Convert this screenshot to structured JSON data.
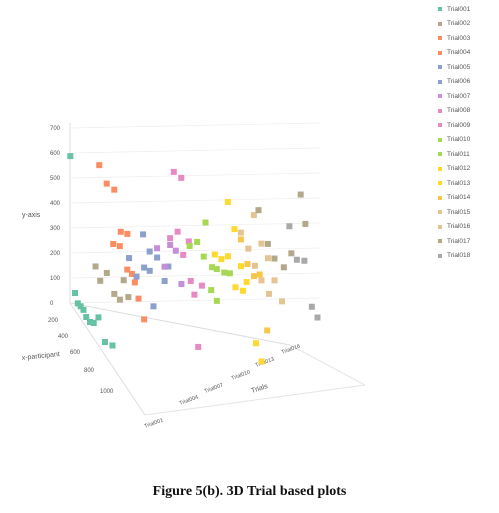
{
  "caption": "Figure 5(b). 3D Trial based plots",
  "chart_data": {
    "type": "scatter3d",
    "title": "",
    "axes": {
      "x": {
        "label": "x-participant",
        "ticks": [
          "200",
          "400",
          "600",
          "800",
          "1000"
        ]
      },
      "y": {
        "label": "y-axis",
        "ticks": [
          "0",
          "100",
          "200",
          "300",
          "400",
          "500",
          "600",
          "700"
        ]
      },
      "z": {
        "label": "Trials",
        "ticks": [
          "Trial001",
          "Trial004",
          "Trial007",
          "Trial010",
          "Trial013",
          "Trial016"
        ]
      }
    },
    "legend_position": "top-right",
    "series": [
      {
        "name": "Trial001",
        "color": "#66c2a5",
        "points": [
          [
            200,
            40
          ],
          [
            230,
            15
          ],
          [
            260,
            20
          ],
          [
            290,
            22
          ],
          [
            320,
            10
          ],
          [
            360,
            12
          ],
          [
            400,
            30
          ],
          [
            450,
            80
          ],
          [
            520,
            20
          ],
          [
            600,
            50
          ],
          [
            150,
            560
          ]
        ]
      },
      {
        "name": "Trial002",
        "color": "#b3a88a",
        "points": [
          [
            300,
            200
          ],
          [
            350,
            170
          ],
          [
            420,
            240
          ],
          [
            500,
            200
          ],
          [
            560,
            210
          ],
          [
            600,
            310
          ],
          [
            650,
            270
          ]
        ]
      },
      {
        "name": "Trial003",
        "color": "#fc8d62",
        "points": [
          [
            220,
            560
          ],
          [
            300,
            530
          ],
          [
            380,
            550
          ],
          [
            450,
            420
          ],
          [
            520,
            450
          ],
          [
            600,
            300
          ]
        ]
      },
      {
        "name": "Trial004",
        "color": "#fc8d62",
        "points": [
          [
            250,
            260
          ],
          [
            320,
            290
          ],
          [
            400,
            240
          ],
          [
            450,
            250
          ],
          [
            520,
            190
          ],
          [
            580,
            140
          ]
        ]
      },
      {
        "name": "Trial005",
        "color": "#8da0cb",
        "points": [
          [
            300,
            230
          ],
          [
            380,
            200
          ],
          [
            460,
            280
          ],
          [
            520,
            300
          ],
          [
            560,
            180
          ]
        ]
      },
      {
        "name": "Trial006",
        "color": "#8da0cb",
        "points": [
          [
            330,
            340
          ],
          [
            400,
            310
          ],
          [
            480,
            330
          ],
          [
            560,
            280
          ],
          [
            600,
            360
          ]
        ]
      },
      {
        "name": "Trial007",
        "color": "#c58ed8",
        "points": [
          [
            360,
            300
          ],
          [
            440,
            270
          ],
          [
            500,
            390
          ],
          [
            560,
            400
          ],
          [
            620,
            300
          ]
        ]
      },
      {
        "name": "Trial008",
        "color": "#e78ac3",
        "points": [
          [
            380,
            350
          ],
          [
            460,
            420
          ],
          [
            520,
            360
          ],
          [
            600,
            300
          ],
          [
            680,
            80
          ]
        ]
      },
      {
        "name": "Trial009",
        "color": "#e78ac3",
        "points": [
          [
            300,
            570
          ],
          [
            380,
            590
          ],
          [
            460,
            380
          ],
          [
            520,
            200
          ],
          [
            600,
            280
          ]
        ]
      },
      {
        "name": "Trial010",
        "color": "#a6d854",
        "points": [
          [
            350,
            300
          ],
          [
            430,
            360
          ],
          [
            500,
            340
          ],
          [
            580,
            250
          ],
          [
            640,
            240
          ]
        ]
      },
      {
        "name": "Trial011",
        "color": "#a6d854",
        "points": [
          [
            400,
            420
          ],
          [
            470,
            280
          ],
          [
            520,
            300
          ],
          [
            600,
            330
          ],
          [
            660,
            360
          ]
        ]
      },
      {
        "name": "Trial012",
        "color": "#ffd92f",
        "points": [
          [
            380,
            280
          ],
          [
            450,
            300
          ],
          [
            520,
            350
          ],
          [
            600,
            270
          ],
          [
            680,
            300
          ]
        ]
      },
      {
        "name": "Trial013",
        "color": "#ffd92f",
        "points": [
          [
            400,
            500
          ],
          [
            470,
            430
          ],
          [
            540,
            320
          ],
          [
            600,
            290
          ],
          [
            700,
            100
          ],
          [
            760,
            60
          ]
        ]
      },
      {
        "name": "Trial014",
        "color": "#f5c84c",
        "points": [
          [
            420,
            360
          ],
          [
            490,
            300
          ],
          [
            560,
            290
          ],
          [
            620,
            330
          ],
          [
            700,
            150
          ]
        ]
      },
      {
        "name": "Trial015",
        "color": "#e5c494",
        "points": [
          [
            300,
            320
          ],
          [
            380,
            300
          ],
          [
            450,
            270
          ],
          [
            520,
            250
          ],
          [
            600,
            240
          ]
        ]
      },
      {
        "name": "Trial016",
        "color": "#e5c494",
        "points": [
          [
            320,
            400
          ],
          [
            400,
            330
          ],
          [
            470,
            310
          ],
          [
            540,
            260
          ],
          [
            620,
            220
          ]
        ]
      },
      {
        "name": "Trial017",
        "color": "#b3a88a",
        "points": [
          [
            250,
            380
          ],
          [
            350,
            300
          ],
          [
            420,
            280
          ],
          [
            520,
            300
          ],
          [
            600,
            400
          ],
          [
            700,
            690
          ],
          [
            750,
            600
          ]
        ]
      },
      {
        "name": "Trial018",
        "color": "#a9a9a9",
        "points": [
          [
            460,
            430
          ],
          [
            540,
            340
          ],
          [
            620,
            380
          ],
          [
            700,
            240
          ],
          [
            760,
            230
          ]
        ]
      }
    ]
  }
}
